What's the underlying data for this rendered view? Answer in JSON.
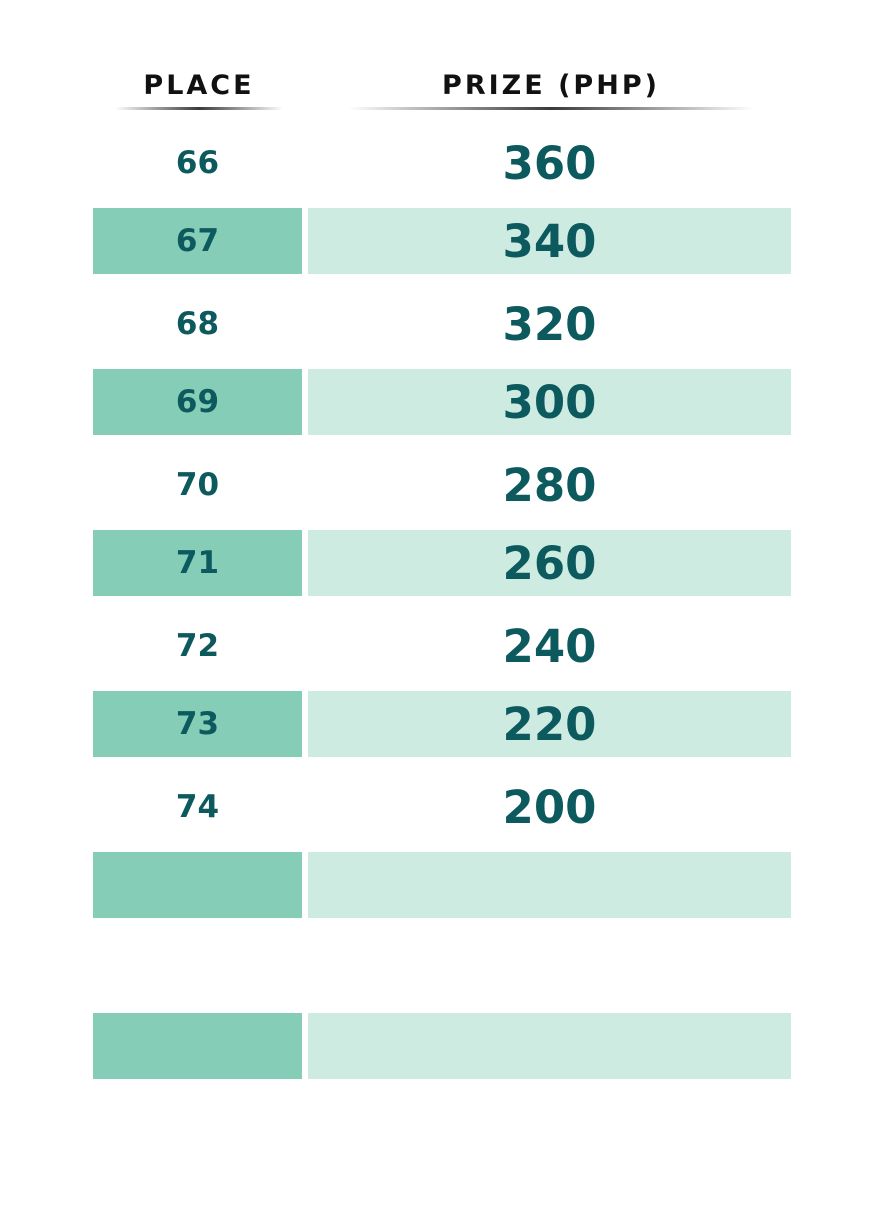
{
  "headers": {
    "place": "PLACE",
    "prize": "PRIZE (PHP)"
  },
  "rows": [
    {
      "place": "66",
      "prize": "360",
      "shaded": false
    },
    {
      "place": "67",
      "prize": "340",
      "shaded": true
    },
    {
      "place": "68",
      "prize": "320",
      "shaded": false
    },
    {
      "place": "69",
      "prize": "300",
      "shaded": true
    },
    {
      "place": "70",
      "prize": "280",
      "shaded": false
    },
    {
      "place": "71",
      "prize": "260",
      "shaded": true
    },
    {
      "place": "72",
      "prize": "240",
      "shaded": false
    },
    {
      "place": "73",
      "prize": "220",
      "shaded": true
    },
    {
      "place": "74",
      "prize": "200",
      "shaded": false
    },
    {
      "place": "",
      "prize": "",
      "shaded": true
    },
    {
      "place": "",
      "prize": "",
      "shaded": false
    },
    {
      "place": "",
      "prize": "",
      "shaded": true
    }
  ],
  "colors": {
    "text": "#0d5a5e",
    "place_shade": "#86cdb8",
    "prize_shade": "#ceebe2"
  }
}
